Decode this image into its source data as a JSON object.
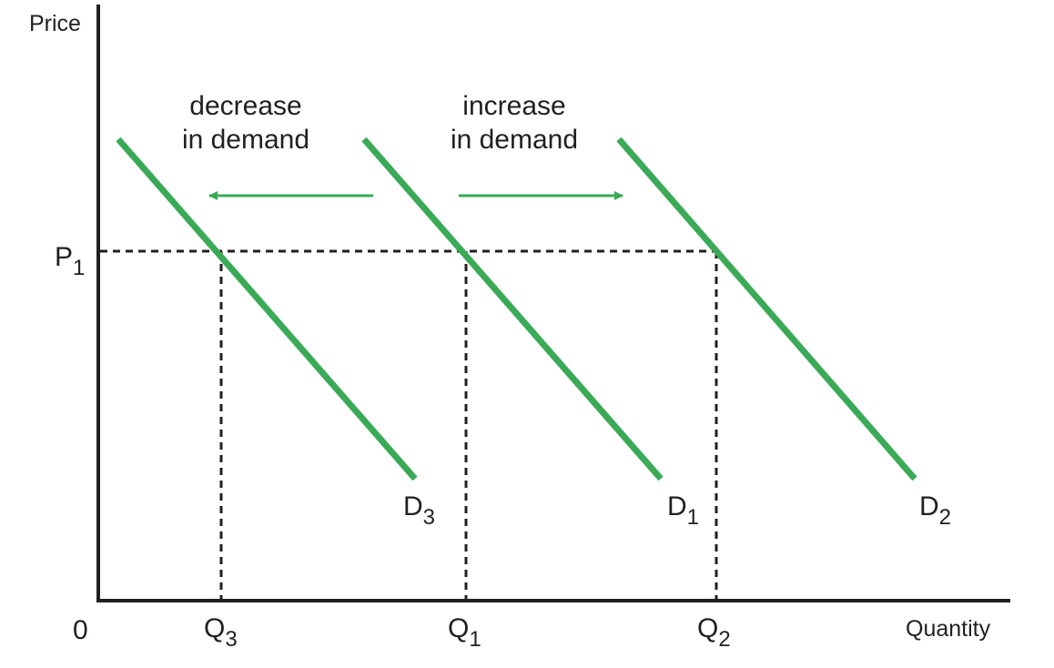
{
  "axes": {
    "y_label": "Price",
    "x_label": "Quantity",
    "origin": "0"
  },
  "annotations": [
    {
      "line1": "decrease",
      "line2": "in demand"
    },
    {
      "line1": "increase",
      "line2": "in demand"
    }
  ],
  "price_level": {
    "main": "P",
    "sub": "1"
  },
  "curves": [
    {
      "main": "D",
      "sub": "3"
    },
    {
      "main": "D",
      "sub": "1"
    },
    {
      "main": "D",
      "sub": "2"
    }
  ],
  "quantities": [
    {
      "main": "Q",
      "sub": "3"
    },
    {
      "main": "Q",
      "sub": "1"
    },
    {
      "main": "Q",
      "sub": "2"
    }
  ]
}
